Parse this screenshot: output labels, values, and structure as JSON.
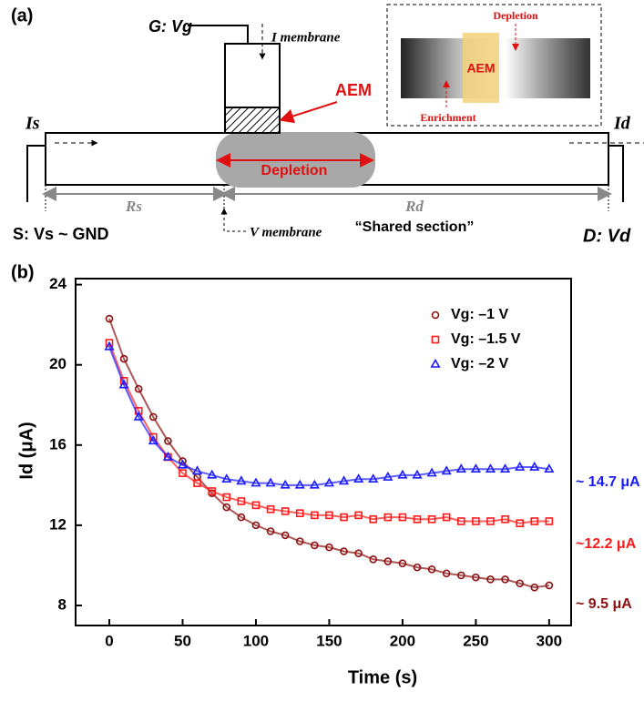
{
  "panel_a": {
    "label": "(a)",
    "gate": "G: Vg",
    "i_membrane": "I membrane",
    "aem": "AEM",
    "i_s": "Is",
    "i_d": "Id",
    "depletion": "Depletion",
    "r_s": "Rs",
    "r_d": "Rd",
    "source": "S: Vs ~ GND",
    "v_membrane": "V membrane",
    "shared": "“Shared section”",
    "drain": "D: Vd",
    "inset": {
      "depletion": "Depletion",
      "aem": "AEM",
      "enrichment": "Enrichment"
    }
  },
  "chart_data": {
    "type": "scatter",
    "panel_label": "(b)",
    "x_label": "Time (s)",
    "y_label": "Id (μA)",
    "x": [
      0,
      10,
      20,
      30,
      40,
      50,
      60,
      70,
      80,
      90,
      100,
      110,
      120,
      130,
      140,
      150,
      160,
      170,
      180,
      190,
      200,
      210,
      220,
      230,
      240,
      250,
      260,
      270,
      280,
      290,
      300
    ],
    "series": [
      {
        "name": "Vg: –1 V",
        "color": "#8b1010",
        "marker": "circle",
        "values": [
          22.3,
          20.3,
          18.8,
          17.4,
          16.2,
          15.2,
          14.4,
          13.6,
          12.9,
          12.4,
          12.0,
          11.7,
          11.5,
          11.2,
          11.0,
          10.9,
          10.7,
          10.6,
          10.3,
          10.2,
          10.1,
          9.9,
          9.8,
          9.6,
          9.5,
          9.4,
          9.3,
          9.3,
          9.1,
          8.9,
          9.0
        ]
      },
      {
        "name": "Vg: –1.5 V",
        "color": "#ff1a1a",
        "marker": "square",
        "values": [
          21.1,
          19.2,
          17.7,
          16.4,
          15.4,
          14.6,
          14.1,
          13.7,
          13.4,
          13.2,
          13.0,
          12.8,
          12.7,
          12.6,
          12.5,
          12.5,
          12.4,
          12.5,
          12.3,
          12.4,
          12.4,
          12.3,
          12.3,
          12.4,
          12.2,
          12.2,
          12.2,
          12.3,
          12.1,
          12.2,
          12.2
        ]
      },
      {
        "name": "Vg: –2 V",
        "color": "#1a1aff",
        "marker": "triangle",
        "values": [
          20.9,
          19.0,
          17.4,
          16.2,
          15.4,
          15.0,
          14.7,
          14.5,
          14.3,
          14.2,
          14.1,
          14.1,
          14.0,
          14.0,
          14.0,
          14.1,
          14.2,
          14.3,
          14.3,
          14.4,
          14.5,
          14.5,
          14.6,
          14.7,
          14.8,
          14.8,
          14.8,
          14.8,
          14.9,
          14.9,
          14.8
        ]
      }
    ],
    "xlim": [
      -23,
      315
    ],
    "xticks": [
      0,
      50,
      100,
      150,
      200,
      250,
      300
    ],
    "ylim": [
      7,
      24.3
    ],
    "yticks": [
      8,
      12,
      16,
      20,
      24
    ],
    "annotations": [
      {
        "text": "~ 14.7 μA",
        "color": "#1a1aff"
      },
      {
        "text": "~12.2 μA",
        "color": "#ff1a1a"
      },
      {
        "text": "~ 9.5 μA",
        "color": "#8b1010"
      }
    ]
  }
}
